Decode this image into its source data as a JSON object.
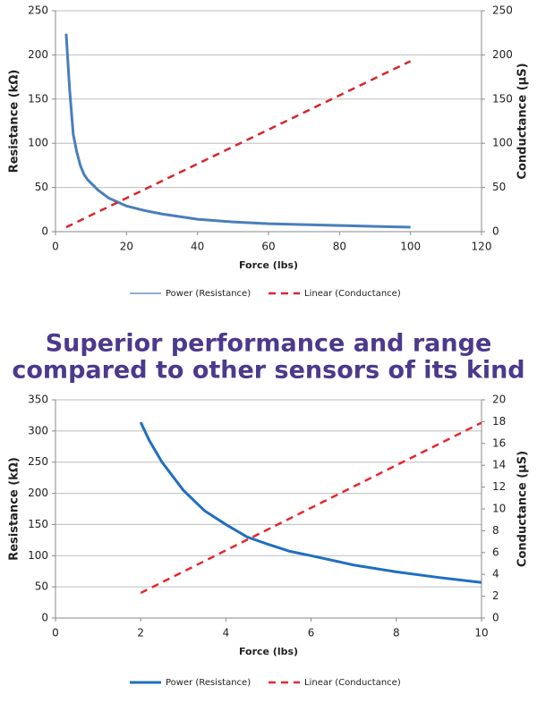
{
  "heading": [
    "Superior performance and range",
    "compared to other sensors of its kind"
  ],
  "chart_data": [
    {
      "type": "line",
      "xlabel": "Force (lbs)",
      "ylabel": "Resistance (kΩ)",
      "y2label": "Conductance (µS)",
      "xlim": [
        0,
        120
      ],
      "xticks": [
        0,
        20,
        40,
        60,
        80,
        100,
        120
      ],
      "ylim": [
        0,
        250
      ],
      "yticks": [
        0,
        50,
        100,
        150,
        200,
        250
      ],
      "y2lim": [
        0,
        250
      ],
      "y2ticks": [
        0,
        50,
        100,
        150,
        200,
        250
      ],
      "grid": true,
      "series": [
        {
          "name": "Power (Resistance)",
          "color": "#4a7ebb",
          "style": "solid",
          "x": [
            3,
            4,
            5,
            6,
            7,
            8,
            9,
            10,
            12,
            15,
            20,
            25,
            30,
            40,
            50,
            60,
            70,
            80,
            90,
            100
          ],
          "values": [
            224,
            160,
            110,
            90,
            75,
            65,
            59,
            55,
            47,
            38,
            29,
            24,
            20,
            14,
            11,
            9,
            8,
            7,
            6,
            5
          ]
        },
        {
          "name": "Linear (Conductance)",
          "color": "#d7262c",
          "style": "dashed",
          "axis": "y2",
          "x": [
            3,
            100
          ],
          "values": [
            5,
            193
          ]
        }
      ]
    },
    {
      "type": "line",
      "xlabel": "Force (lbs)",
      "ylabel": "Resistance (kΩ)",
      "y2label": "Conductance (µS)",
      "xlim": [
        0,
        10
      ],
      "xticks": [
        0,
        2,
        4,
        6,
        8,
        10
      ],
      "ylim": [
        0,
        350
      ],
      "yticks": [
        0,
        50,
        100,
        150,
        200,
        250,
        300,
        350
      ],
      "y2lim": [
        0,
        20
      ],
      "y2ticks": [
        0,
        2,
        4,
        6,
        8,
        10,
        12,
        14,
        16,
        18,
        20
      ],
      "grid": true,
      "series": [
        {
          "name": "Power (Resistance)",
          "color": "#1f6fbf",
          "style": "solid",
          "x": [
            2,
            2.2,
            2.5,
            3,
            3.5,
            4,
            4.5,
            5,
            5.5,
            6,
            7,
            8,
            9,
            10
          ],
          "values": [
            314,
            285,
            250,
            205,
            172,
            150,
            130,
            118,
            107,
            100,
            85,
            74,
            65,
            57
          ]
        },
        {
          "name": "Linear (Conductance)",
          "color": "#e8262c",
          "style": "dashed",
          "axis": "y2",
          "x": [
            2,
            10
          ],
          "values": [
            2.3,
            17.9
          ]
        }
      ]
    }
  ]
}
